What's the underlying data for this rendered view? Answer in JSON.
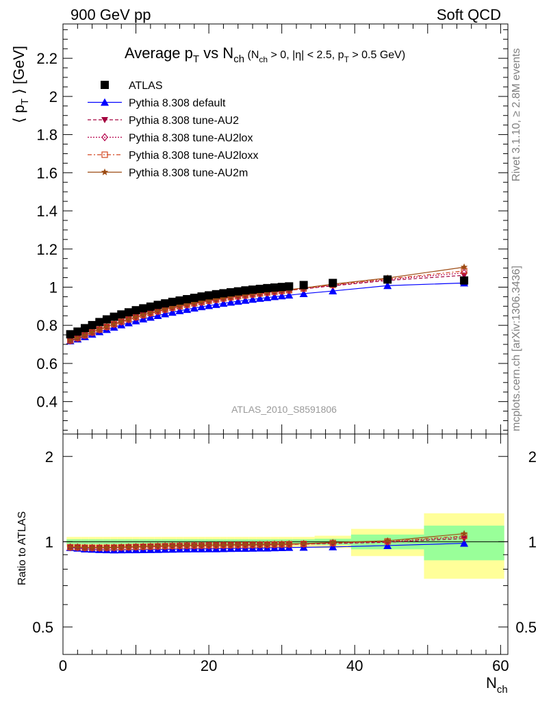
{
  "header": {
    "left": "900 GeV pp",
    "right": "Soft QCD"
  },
  "sidebar": {
    "rivet": "Rivet 3.1.10, ≥ 2.8M events",
    "mcplots": "mcplots.cern.ch [arXiv:1306.3436]"
  },
  "chart_data": [
    {
      "type": "scatter",
      "panel": "main",
      "title": "Average pT vs Nch (Nch > 0, |η| < 2.5, pT > 0.5 GeV)",
      "ylabel": "⟨ pT ⟩ [GeV]",
      "xlabel": "Nch",
      "watermark": "ATLAS_2010_S8591806",
      "xlim": [
        0,
        61
      ],
      "ylim": [
        0.23,
        2.38
      ],
      "yticks": [
        0.4,
        0.6,
        0.8,
        1,
        1.2,
        1.4,
        1.6,
        1.8,
        2,
        2.2
      ],
      "legend_position": "top-left",
      "x": [
        1,
        2,
        3,
        4,
        5,
        6,
        7,
        8,
        9,
        10,
        11,
        12,
        13,
        14,
        15,
        16,
        17,
        18,
        19,
        20,
        21,
        22,
        23,
        24,
        25,
        26,
        27,
        28,
        29,
        30,
        31,
        33,
        37,
        44.5,
        55
      ],
      "series": [
        {
          "name": "ATLAS",
          "color": "#000000",
          "marker": "square",
          "line": "none",
          "values": [
            0.753,
            0.767,
            0.785,
            0.801,
            0.817,
            0.831,
            0.845,
            0.857,
            0.868,
            0.879,
            0.889,
            0.898,
            0.907,
            0.915,
            0.923,
            0.93,
            0.937,
            0.944,
            0.951,
            0.957,
            0.963,
            0.968,
            0.973,
            0.978,
            0.983,
            0.987,
            0.991,
            0.995,
            0.998,
            1.001,
            1.004,
            1.011,
            1.022,
            1.04,
            1.035
          ],
          "ratio_band_green": [
            0.02,
            0.02,
            0.02,
            0.02,
            0.02,
            0.02,
            0.02,
            0.02,
            0.02,
            0.02,
            0.02,
            0.02,
            0.02,
            0.02,
            0.02,
            0.02,
            0.02,
            0.02,
            0.02,
            0.02,
            0.02,
            0.02,
            0.02,
            0.02,
            0.02,
            0.02,
            0.02,
            0.02,
            0.02,
            0.02,
            0.02,
            0.02,
            0.025,
            0.06,
            0.14
          ],
          "ratio_band_yellow": [
            0.04,
            0.04,
            0.04,
            0.04,
            0.04,
            0.04,
            0.04,
            0.04,
            0.04,
            0.04,
            0.04,
            0.04,
            0.04,
            0.04,
            0.04,
            0.04,
            0.04,
            0.04,
            0.04,
            0.04,
            0.04,
            0.04,
            0.04,
            0.04,
            0.04,
            0.04,
            0.04,
            0.04,
            0.04,
            0.04,
            0.04,
            0.04,
            0.05,
            0.11,
            0.26
          ],
          "bin_edges": [
            0.5,
            1.5,
            2.5,
            3.5,
            4.5,
            5.5,
            6.5,
            7.5,
            8.5,
            9.5,
            10.5,
            11.5,
            12.5,
            13.5,
            14.5,
            15.5,
            16.5,
            17.5,
            18.5,
            19.5,
            20.5,
            21.5,
            22.5,
            23.5,
            24.5,
            25.5,
            26.5,
            27.5,
            28.5,
            29.5,
            30.5,
            31.5,
            34.5,
            39.5,
            49.5,
            60.5
          ]
        },
        {
          "name": "Pythia 8.308 default",
          "color": "#0000ff",
          "marker": "triangle-up",
          "line": "solid",
          "values": [
            0.718,
            0.728,
            0.74,
            0.753,
            0.766,
            0.778,
            0.79,
            0.802,
            0.813,
            0.823,
            0.833,
            0.842,
            0.851,
            0.86,
            0.868,
            0.876,
            0.883,
            0.89,
            0.897,
            0.903,
            0.909,
            0.915,
            0.921,
            0.926,
            0.931,
            0.936,
            0.941,
            0.945,
            0.95,
            0.954,
            0.958,
            0.966,
            0.98,
            1.008,
            1.022
          ]
        },
        {
          "name": "Pythia 8.308 tune-AU2",
          "color": "#a3003d",
          "marker": "triangle-down",
          "line": "dashed",
          "values": [
            0.72,
            0.733,
            0.747,
            0.762,
            0.777,
            0.791,
            0.805,
            0.818,
            0.83,
            0.842,
            0.853,
            0.863,
            0.873,
            0.882,
            0.891,
            0.899,
            0.907,
            0.914,
            0.921,
            0.928,
            0.934,
            0.94,
            0.946,
            0.951,
            0.956,
            0.961,
            0.966,
            0.97,
            0.975,
            0.979,
            0.983,
            0.991,
            1.007,
            1.035,
            1.062
          ]
        },
        {
          "name": "Pythia 8.308 tune-AU2lox",
          "color": "#b5004a",
          "marker": "diamond-open",
          "line": "dotted",
          "values": [
            0.72,
            0.733,
            0.747,
            0.762,
            0.777,
            0.791,
            0.805,
            0.818,
            0.83,
            0.842,
            0.853,
            0.863,
            0.873,
            0.882,
            0.891,
            0.899,
            0.907,
            0.914,
            0.921,
            0.928,
            0.934,
            0.94,
            0.946,
            0.951,
            0.956,
            0.961,
            0.966,
            0.97,
            0.975,
            0.979,
            0.983,
            0.992,
            1.01,
            1.04,
            1.075
          ]
        },
        {
          "name": "Pythia 8.308 tune-AU2loxx",
          "color": "#d2451e",
          "marker": "square-open",
          "line": "dashdot",
          "values": [
            0.72,
            0.733,
            0.748,
            0.763,
            0.778,
            0.792,
            0.806,
            0.819,
            0.831,
            0.843,
            0.854,
            0.864,
            0.874,
            0.883,
            0.892,
            0.9,
            0.908,
            0.915,
            0.922,
            0.929,
            0.935,
            0.941,
            0.947,
            0.952,
            0.957,
            0.962,
            0.967,
            0.972,
            0.976,
            0.98,
            0.984,
            0.993,
            1.012,
            1.043,
            1.085
          ]
        },
        {
          "name": "Pythia 8.308 tune-AU2m",
          "color": "#9c4a12",
          "marker": "star",
          "line": "solid",
          "values": [
            0.721,
            0.734,
            0.749,
            0.764,
            0.779,
            0.793,
            0.807,
            0.82,
            0.832,
            0.844,
            0.855,
            0.866,
            0.876,
            0.885,
            0.894,
            0.902,
            0.91,
            0.917,
            0.924,
            0.931,
            0.937,
            0.943,
            0.949,
            0.955,
            0.96,
            0.965,
            0.97,
            0.975,
            0.979,
            0.983,
            0.987,
            0.996,
            1.016,
            1.048,
            1.105
          ]
        }
      ]
    },
    {
      "type": "scatter",
      "panel": "ratio",
      "ylabel": "Ratio to ATLAS",
      "xlabel": "Nch",
      "scale": "log",
      "ylim": [
        0.4,
        2.4
      ],
      "yticks": [
        0.5,
        1,
        2
      ],
      "xticks": [
        0,
        20,
        40,
        60
      ],
      "note": "ratio = series / ATLAS"
    }
  ]
}
